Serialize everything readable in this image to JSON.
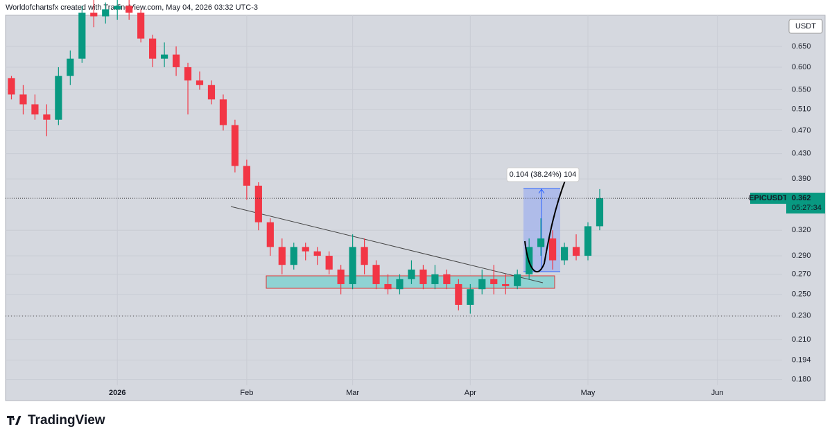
{
  "header": {
    "title": "Worldofchartsfx created with TradingView.com, May 04, 2026 03:32 UTC-3"
  },
  "chart_data": {
    "type": "candlestick",
    "currency": "USDT",
    "symbol": "EPICUSDT",
    "countdown": "05:27:34",
    "measure_label": "0.104 (38.24%) 104",
    "log_scale": true,
    "grid": true,
    "up_color": "#089981",
    "down_color": "#f23645",
    "categories": [
      null,
      null,
      null,
      null,
      null,
      null,
      null,
      null,
      null,
      "2026",
      null,
      null,
      null,
      null,
      null,
      null,
      null,
      null,
      null,
      null,
      "Feb",
      null,
      null,
      null,
      null,
      null,
      null,
      null,
      null,
      "Mar",
      null,
      null,
      null,
      null,
      null,
      null,
      null,
      null,
      null,
      "Apr",
      null,
      null,
      null,
      null,
      null,
      null,
      null,
      null,
      null,
      "May",
      null,
      null,
      null,
      null,
      null,
      null,
      null,
      null,
      null,
      null,
      "Jun",
      null,
      null,
      null,
      null,
      null
    ],
    "open": [
      0.575,
      0.54,
      0.52,
      0.5,
      0.49,
      0.58,
      0.62,
      0.74,
      0.73,
      0.75,
      0.76,
      0.74,
      0.67,
      0.62,
      0.63,
      0.6,
      0.57,
      0.56,
      0.53,
      0.48,
      0.41,
      0.38,
      0.33,
      0.3,
      0.28,
      0.3,
      0.295,
      0.29,
      0.275,
      0.26,
      0.3,
      0.28,
      0.26,
      0.255,
      0.265,
      0.275,
      0.26,
      0.27,
      0.26,
      0.24,
      0.255,
      0.265,
      0.26,
      0.258,
      0.27,
      0.3,
      0.31,
      0.285,
      0.3,
      0.29,
      0.325,
      null,
      null,
      null,
      null,
      null,
      null,
      null,
      null,
      null,
      null,
      null,
      null,
      null,
      null,
      null
    ],
    "high": [
      0.58,
      0.56,
      0.54,
      0.52,
      0.6,
      0.64,
      0.76,
      0.78,
      0.77,
      0.79,
      0.78,
      0.75,
      0.68,
      0.66,
      0.65,
      0.61,
      0.59,
      0.57,
      0.54,
      0.49,
      0.42,
      0.385,
      0.335,
      0.31,
      0.305,
      0.305,
      0.3,
      0.295,
      0.28,
      0.315,
      0.31,
      0.285,
      0.27,
      0.27,
      0.285,
      0.28,
      0.28,
      0.275,
      0.265,
      0.26,
      0.275,
      0.28,
      0.27,
      0.275,
      0.31,
      0.335,
      0.32,
      0.305,
      0.315,
      0.33,
      0.375,
      null,
      null,
      null,
      null,
      null,
      null,
      null,
      null,
      null,
      null,
      null,
      null,
      null,
      null,
      null
    ],
    "low": [
      0.53,
      0.5,
      0.49,
      0.46,
      0.48,
      0.56,
      0.61,
      0.7,
      0.71,
      0.72,
      0.72,
      0.66,
      0.6,
      0.6,
      0.58,
      0.5,
      0.55,
      0.52,
      0.47,
      0.4,
      0.36,
      0.32,
      0.29,
      0.27,
      0.275,
      0.285,
      0.28,
      0.27,
      0.25,
      0.255,
      0.27,
      0.255,
      0.25,
      0.25,
      0.26,
      0.255,
      0.255,
      0.255,
      0.235,
      0.232,
      0.25,
      0.25,
      0.25,
      0.255,
      0.265,
      0.29,
      0.275,
      0.28,
      0.285,
      0.285,
      0.32,
      null,
      null,
      null,
      null,
      null,
      null,
      null,
      null,
      null,
      null,
      null,
      null,
      null,
      null,
      null
    ],
    "close": [
      0.54,
      0.52,
      0.5,
      0.49,
      0.58,
      0.62,
      0.74,
      0.73,
      0.75,
      0.76,
      0.74,
      0.67,
      0.62,
      0.63,
      0.6,
      0.57,
      0.56,
      0.53,
      0.48,
      0.41,
      0.38,
      0.33,
      0.3,
      0.28,
      0.3,
      0.295,
      0.29,
      0.275,
      0.26,
      0.3,
      0.28,
      0.26,
      0.255,
      0.265,
      0.275,
      0.26,
      0.27,
      0.26,
      0.24,
      0.255,
      0.265,
      0.26,
      0.258,
      0.27,
      0.3,
      0.31,
      0.285,
      0.3,
      0.29,
      0.325,
      0.362,
      null,
      null,
      null,
      null,
      null,
      null,
      null,
      null,
      null,
      null,
      null,
      null,
      null,
      null,
      null
    ],
    "ylim": [
      0.176,
      0.733
    ],
    "yticks": [
      {
        "value": 0.18,
        "label": "0.180"
      },
      0.194,
      {
        "value": 0.21,
        "label": "0.210"
      },
      {
        "value": 0.23,
        "label": "0.230"
      },
      {
        "value": 0.25,
        "label": "0.250"
      },
      {
        "value": 0.27,
        "label": "0.270"
      },
      {
        "value": 0.29,
        "label": "0.290"
      },
      {
        "value": 0.32,
        "label": "0.320"
      },
      {
        "value": 0.39,
        "label": "0.390"
      },
      {
        "value": 0.43,
        "label": "0.430"
      },
      {
        "value": 0.47,
        "label": "0.470"
      },
      {
        "value": 0.51,
        "label": "0.510"
      },
      {
        "value": 0.55,
        "label": "0.550"
      },
      {
        "value": 0.6,
        "label": "0.600"
      },
      {
        "value": 0.65,
        "label": "0.650"
      }
    ]
  },
  "footer": {
    "brand": "TradingView"
  }
}
